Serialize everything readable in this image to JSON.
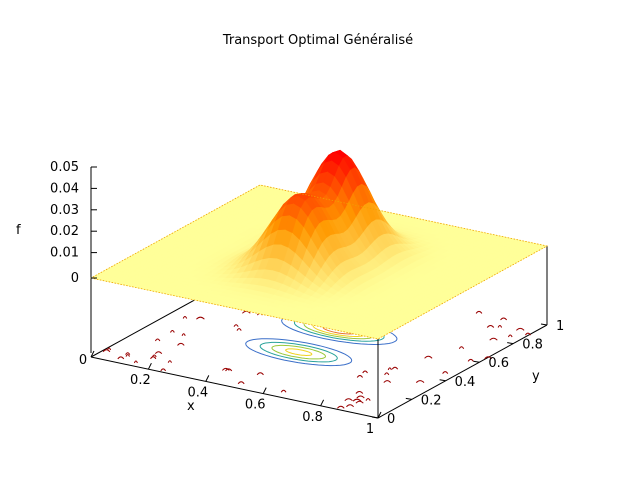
{
  "chart_data": {
    "type": "surface",
    "title": "Transport Optimal Généralisé",
    "xlabel": "x",
    "ylabel": "y",
    "zlabel": "f",
    "x_ticks": [
      "0",
      "0.2",
      "0.4",
      "0.6",
      "0.8",
      "1"
    ],
    "y_ticks": [
      "0",
      "0.2",
      "0.4",
      "0.6",
      "0.8",
      "1"
    ],
    "z_ticks": [
      "0",
      "0.01",
      "0.02",
      "0.03",
      "0.04",
      "0.05"
    ],
    "xlim": [
      0,
      1
    ],
    "ylim": [
      0,
      1
    ],
    "zlim": [
      0,
      0.05
    ],
    "projected_contours": true,
    "colors": {
      "surface_low": "#ffff99",
      "surface_mid": "#ff9900",
      "surface_high": "#ff0000",
      "contour_outer": "#990000",
      "contour_inner": "#3b6fc9"
    },
    "series": [
      {
        "peak_x": 0.5,
        "peak_y": 0.62,
        "peak_f": 0.046,
        "width": 0.09
      },
      {
        "peak_x": 0.5,
        "peak_y": 0.38,
        "peak_f": 0.035,
        "width": 0.09
      }
    ]
  }
}
